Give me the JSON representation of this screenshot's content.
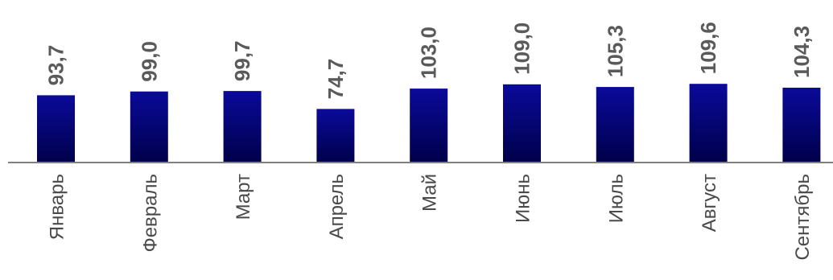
{
  "chart_data": {
    "type": "bar",
    "categories": [
      "Январь",
      "Февраль",
      "Март",
      "Апрель",
      "Май",
      "Июнь",
      "Июль",
      "Август",
      "Сентябрь"
    ],
    "value_labels": [
      "93,7",
      "99,0",
      "99,7",
      "74,7",
      "103,0",
      "109,0",
      "105,3",
      "109,6",
      "104,3"
    ],
    "values": [
      93.7,
      99.0,
      99.7,
      74.7,
      103.0,
      109.0,
      105.3,
      109.6,
      104.3
    ],
    "title": "",
    "xlabel": "",
    "ylabel": "",
    "ylim": [
      0,
      110
    ],
    "grid": false,
    "legend": "none",
    "colors": {
      "bar_top": "#0a0a9a",
      "bar_bottom": "#00004a",
      "axis": "#808080",
      "value_label": "#5a5a5a",
      "category_label": "#4a4a4a"
    }
  }
}
